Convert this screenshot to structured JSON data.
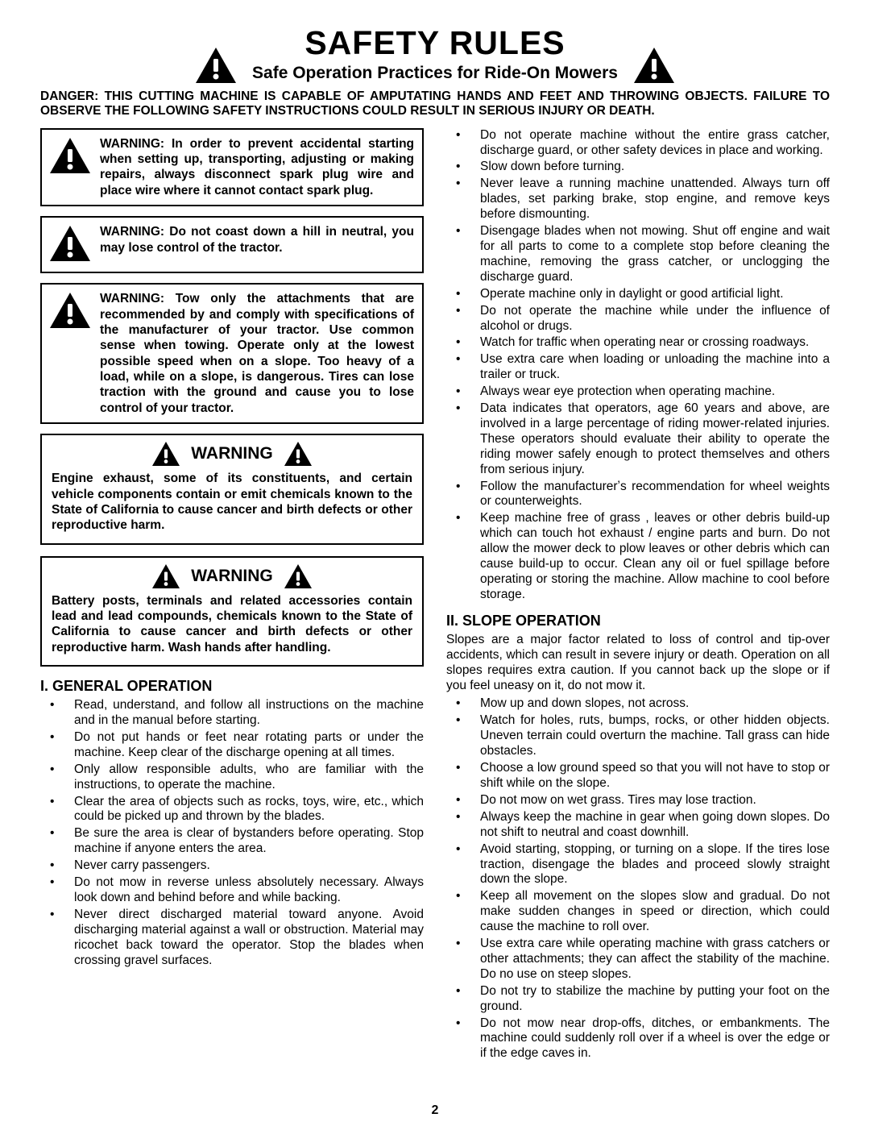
{
  "header": {
    "title": "SAFETY RULES",
    "subtitle": "Safe Operation Practices for Ride-On Mowers"
  },
  "danger": "DANGER:  THIS CUTTING MACHINE IS CAPABLE OF AMPUTATING HANDS AND FEET AND THROWING OBJECTS.  FAILURE TO OBSERVE THE FOLLOWING SAFETY INSTRUCTIONS COULD RESULT IN SERIOUS INJURY OR DEATH.",
  "warn_boxes": [
    "WARNING:  In order to prevent ac­ci­den­tal starting when setting up, trans­port­ing, adjusting or making re­pairs, always disconnect spark plug wire and place wire where it cannot contact spark plug.",
    "WARNING:  Do not coast down a hill in neutral, you may lose control of the tractor.",
    "WARNING: Tow only the attachments that are recommended by and com­ply with specifications of the man­u­fac­tur­er of your tractor. Use common sense when towing. Operate only at the lowest possible speed when on a slope.  Too heavy of a load, while on a slope, is dangerous.  Tires can lose traction with the ground and cause you to lose control of your tractor."
  ],
  "warn_heading": "WARNING",
  "warn_heading_boxes": [
    "Engine exhaust, some of its constituents, and cer­tain vehicle components contain or emit chemicals known to the State of California to cause cancer and birth defects or other reproductive harm.",
    "Battery posts, terminals and related accessories contain lead and lead compounds, chemicals known to the State of California to cause cancer and birth defects or other reproductive harm. Wash hands after handling."
  ],
  "section1": {
    "title": "I. GENERAL OPERATION",
    "items_left": [
      "Read, understand, and follow all instructions on the machine and in the manual before starting.",
      "Do not put hands or feet near rotating parts or under the machine. Keep clear of the discharge opening at all times.",
      "Only allow responsible adults, who are familiar with the instructions, to operate the machine.",
      "Clear the area of objects such as  rocks, toys, wire, etc., which could be picked up and thrown by the blades.",
      "Be sure the area is clear of bystanders before operat­ing.  Stop machine if anyone enters the area.",
      "Never carry passengers.",
      "Do not mow in reverse unless absolutely necessary. Always look down and behind before and while back­ing.",
      "Never direct discharged material toward anyone. Avoid discharging material against a wall or obstruction. Ma­te­ri­al may ricochet back toward the operator. Stop the blades when crossing gravel surfaces."
    ],
    "items_right": [
      "Do not operate machine without the entire grass  catcher, discharge guard, or other safety devices in place and working.",
      "Slow down before turning.",
      "Never leave a running machine unattended.  Always turn off blades, set parking brake, stop engine, and remove keys before dismounting.",
      "Disengage blades when not mowing. Shut off engine and wait for all parts to come to a complete stop before cleaning the machine, removing the grass catcher, or unclogging the discharge guard.",
      "Operate machine only in daylight or good artificial light.",
      "Do not operate the machine while under the influence of alcohol or drugs.",
      "Watch for traffic when operating near or crossing road­ways.",
      "Use extra care when loading or unloading the machine into a trailer or truck.",
      "Always wear eye protection when operating ma­chine.",
      "Data indicates that operators, age 60 years and above, are involved in a large percentage of riding mower-re­lat­ed injuries.  These operators should evaluate their ability to operate the riding mower safely enough to protect themselves and others from serious injury.",
      "Follow the manufacturerʼs recommendation for wheel weights or counterweights.",
      "Keep machine free of grass , leaves or other debris build-up which can touch hot exhaust / engine parts and burn. Do not allow the mower deck to plow leaves or other debris which can cause build-up to occur. Clean any oil or fuel spillage before operating or storing the machine. Allow machine to cool before storage."
    ]
  },
  "section2": {
    "title": "II. SLOPE OPERATION",
    "intro": "Slopes are a major factor related to loss of control and tip-over accidents, which can result in severe injury or death.  Operation on all slopes requires extra caution.  If you cannot back up the slope or if you feel uneasy on it, do not mow it.",
    "items": [
      "Mow up and down slopes, not across.",
      "Watch for holes, ruts, bumps, rocks, or other hidden objects.  Uneven terrain could overturn the machine. Tall grass can hide obstacles.",
      "Choose a low ground speed so that you will not have to stop or shift while on the slope.",
      "Do not mow on wet grass. Tires may lose traction.",
      "Always keep the machine in gear when going down slopes. Do not shift to neutral and coast downhill.",
      "Avoid starting, stopping, or turning on a slope.  If the tires lose traction,  disengage the blades and proceed slowly straight down the slope.",
      "Keep all movement on the slopes slow and gradual. Do not make sudden changes in speed or direction, which could cause the machine to roll over.",
      "Use extra care while operating machine with grass catchers or other attachments; they can affect the stability of the machine. Do no use on steep slopes.",
      "Do not  try to stabilize the machine by putting your foot on the ground.",
      "Do not mow near drop-offs, ditches, or embankments. The machine could suddenly roll over if a wheel is over the edge or if the edge caves in."
    ]
  },
  "page_num": "2",
  "style": {
    "page_bg": "#ffffff",
    "text_color": "#000000",
    "border_color": "#000000",
    "title_fontsize": 41,
    "subtitle_fontsize": 21,
    "body_fontsize": 15.5,
    "section_title_fontsize": 18
  }
}
